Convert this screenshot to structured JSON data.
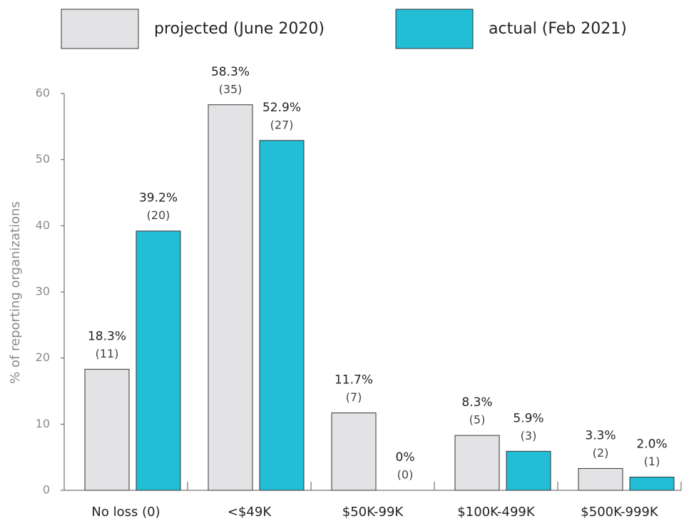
{
  "chart_data": {
    "type": "bar",
    "y_label": "% of reporting organizations",
    "categories": [
      "No loss (0)",
      "<$49K",
      "$50K-99K",
      "$100K-499K",
      "$500K-999K"
    ],
    "series": [
      {
        "name": "projected (June 2020)",
        "color": "#e3e3e5",
        "values": [
          18.3,
          58.3,
          11.7,
          8.3,
          3.3
        ],
        "value_labels": [
          "18.3%",
          "58.3%",
          "11.7%",
          "8.3%",
          "3.3%"
        ],
        "count_labels": [
          "(11)",
          "(35)",
          "(7)",
          "(5)",
          "(2)"
        ]
      },
      {
        "name": "actual (Feb 2021)",
        "color": "#22bed5",
        "values": [
          39.2,
          52.9,
          0,
          5.9,
          2.0
        ],
        "value_labels": [
          "39.2%",
          "52.9%",
          "0%",
          "5.9%",
          "2.0%"
        ],
        "count_labels": [
          "(20)",
          "(27)",
          "(0)",
          "(3)",
          "(1)"
        ]
      }
    ],
    "ylim": [
      0,
      60
    ],
    "yticks": [
      0,
      10,
      20,
      30,
      40,
      50,
      60
    ],
    "legend": "top"
  }
}
